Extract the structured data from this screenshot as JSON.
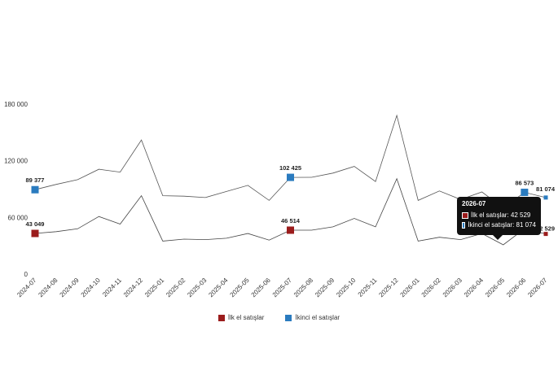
{
  "chart_data": {
    "type": "line",
    "categories": [
      "2024-07",
      "2024-08",
      "2024-09",
      "2024-10",
      "2024-11",
      "2024-12",
      "2025-01",
      "2025-02",
      "2025-03",
      "2025-04",
      "2025-05",
      "2025-06",
      "2025-07",
      "2025-08",
      "2025-09",
      "2025-10",
      "2025-11",
      "2025-12",
      "2026-01",
      "2026-02",
      "2026-03",
      "2026-04",
      "2026-05",
      "2026-06",
      "2026-07"
    ],
    "ylim": [
      0,
      180000
    ],
    "yticks": [
      0,
      60000,
      120000,
      180000
    ],
    "ytick_labels": [
      "0",
      "60 000",
      "120 000",
      "180 000"
    ],
    "grid": false,
    "legend_position": "bottom",
    "series": [
      {
        "name": "İlk el satışlar",
        "color": "#9b1c1c",
        "values": [
          43049,
          45000,
          48000,
          61000,
          53000,
          83000,
          35000,
          37000,
          36500,
          38000,
          43000,
          36000,
          46514,
          46500,
          50000,
          59000,
          50000,
          101000,
          35000,
          39000,
          36500,
          43000,
          31000,
          48000,
          42529
        ]
      },
      {
        "name": "İkinci el satışlar",
        "color": "#2a7bbf",
        "values": [
          89377,
          95000,
          100000,
          111000,
          108000,
          142000,
          83000,
          82500,
          81000,
          87500,
          94000,
          78000,
          102425,
          102500,
          107000,
          114000,
          98000,
          168000,
          78000,
          88000,
          79000,
          87000,
          70000,
          86573,
          81074
        ]
      }
    ],
    "annotations": [
      {
        "series": 0,
        "index": 0,
        "label": "43 049"
      },
      {
        "series": 1,
        "index": 0,
        "label": "89 377"
      },
      {
        "series": 0,
        "index": 12,
        "label": "46 514"
      },
      {
        "series": 1,
        "index": 12,
        "label": "102 425"
      },
      {
        "series": 1,
        "index": 23,
        "label": "86 573"
      },
      {
        "series": 1,
        "index": 24,
        "label": "81 074"
      },
      {
        "series": 0,
        "index": 24,
        "label": "42 529"
      }
    ],
    "tooltip": {
      "title": "2026-07",
      "rows": [
        {
          "label": "İlk el satışlar",
          "value": "42 529",
          "color": "#9b1c1c"
        },
        {
          "label": "İkinci el satışlar",
          "value": "81 074",
          "color": "#2a7bbf"
        }
      ]
    }
  },
  "legend": {
    "series_0": "İlk el satışlar",
    "series_1": "İkinci el satışlar"
  },
  "tooltip_text": {
    "title": "2026-07",
    "row_0": "İlk el satışlar: 42 529",
    "row_1": "İkinci el satışlar: 81 074"
  }
}
